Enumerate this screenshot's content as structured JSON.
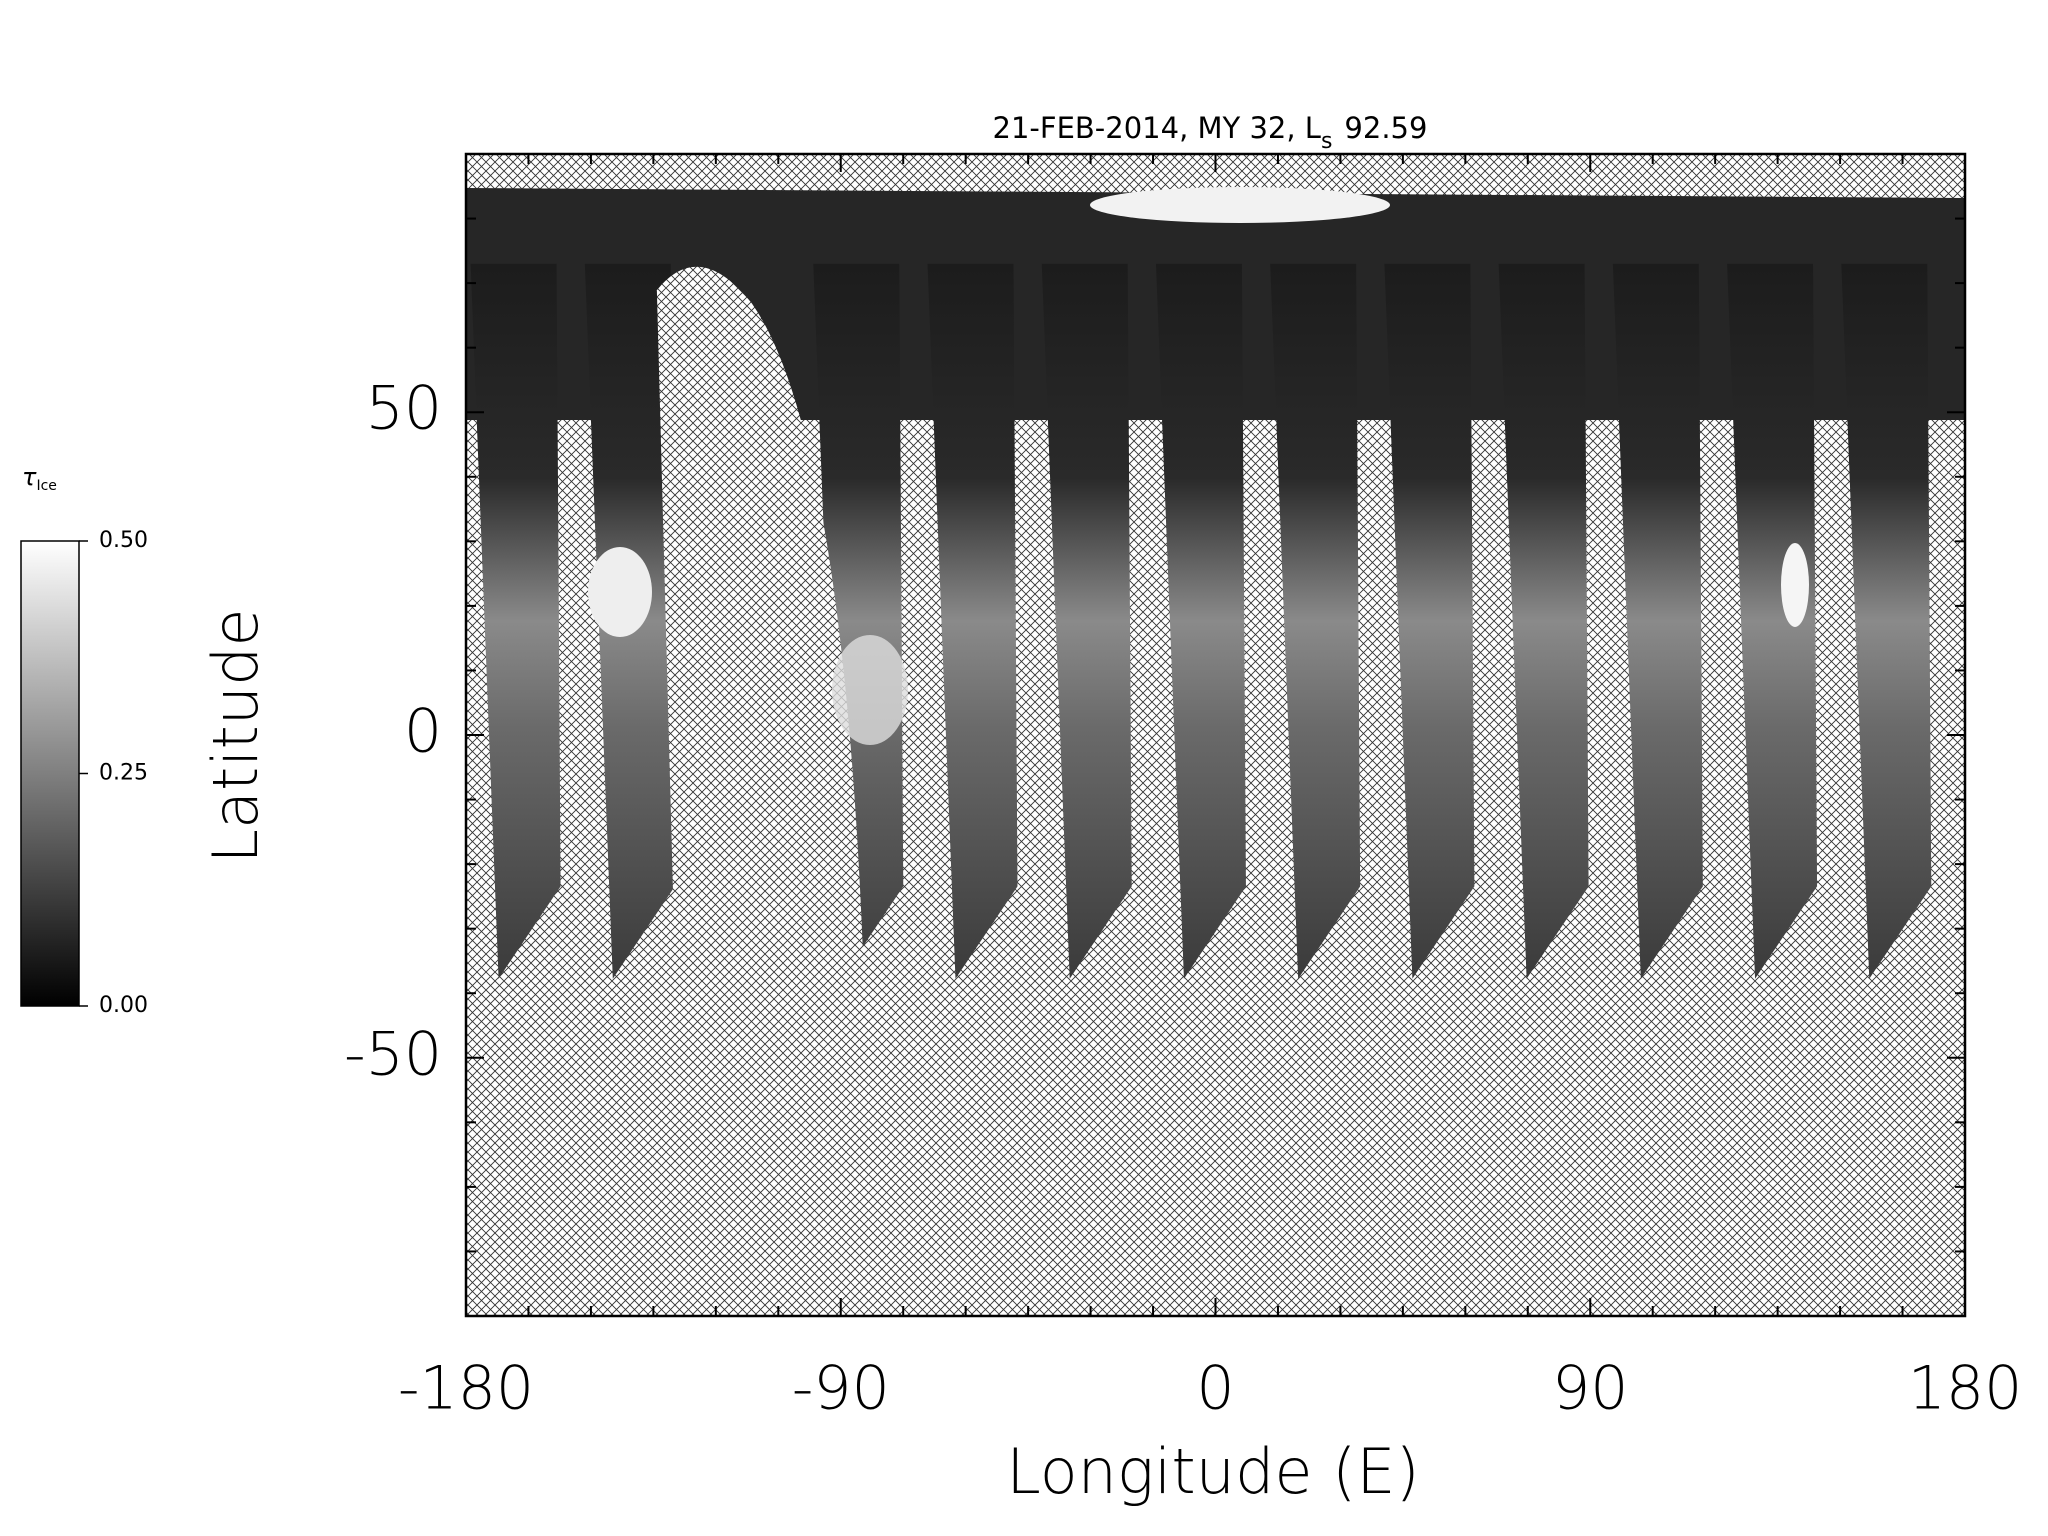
{
  "chart_data": {
    "type": "map",
    "title": "21-FEB-2014, MY 32,  L",
    "title_sub": "s",
    "ls": "92.59",
    "x_label": "Longitude (E)",
    "y_label": "Latitude",
    "xlim": [
      -180,
      180
    ],
    "xticks": [
      -180,
      -90,
      0,
      90,
      180
    ],
    "x_minor_ticks": [
      -165,
      -150,
      -135,
      -120,
      -105,
      -75,
      -60,
      -45,
      -30,
      -15,
      15,
      30,
      45,
      60,
      75,
      105,
      120,
      135,
      150,
      165
    ],
    "ylim": [
      -90,
      90
    ],
    "yticks": [
      -50,
      0,
      50
    ],
    "y_minor_ticks": [
      -80,
      -70,
      -60,
      -40,
      -30,
      -20,
      -10,
      10,
      20,
      30,
      40,
      60,
      70,
      80
    ],
    "colorbar_label": "τ",
    "colorbar_label_sub": "Ice",
    "colorbar_lim": [
      0,
      0.5
    ],
    "colorbar_ticks": [
      {
        "value": 0,
        "label": "0.00"
      },
      {
        "value": 0.25,
        "label": "0.25"
      },
      {
        "value": 0.5,
        "label": "0.50"
      }
    ]
  }
}
